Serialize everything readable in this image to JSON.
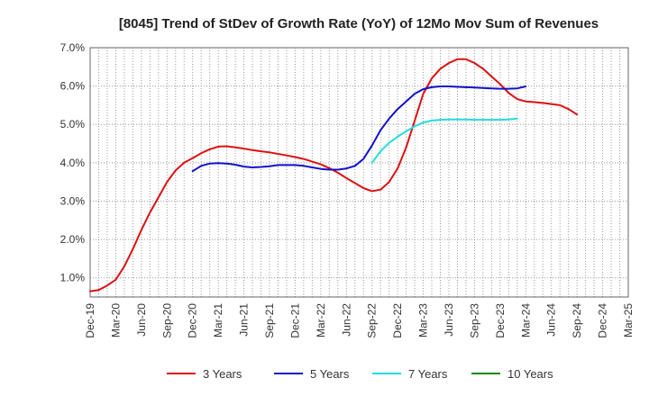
{
  "chart_data": {
    "type": "line",
    "title": "[8045]  Trend of StDev of Growth Rate (YoY) of 12Mo Mov Sum of Revenues",
    "xlabel": "",
    "ylabel": "",
    "ylim": [
      0.5,
      7.0
    ],
    "yticks": [
      1.0,
      2.0,
      3.0,
      4.0,
      5.0,
      6.0,
      7.0
    ],
    "ytick_labels": [
      "1.0%",
      "2.0%",
      "3.0%",
      "4.0%",
      "5.0%",
      "6.0%",
      "7.0%"
    ],
    "xtick_labels": [
      "Dec-19",
      "Mar-20",
      "Jun-20",
      "Sep-20",
      "Dec-20",
      "Mar-21",
      "Jun-21",
      "Sep-21",
      "Dec-21",
      "Mar-22",
      "Jun-22",
      "Sep-22",
      "Dec-22",
      "Mar-23",
      "Jun-23",
      "Sep-23",
      "Dec-23",
      "Mar-24",
      "Jun-24",
      "Sep-24",
      "Dec-24",
      "Mar-25"
    ],
    "x_unit": "months since Dec-19",
    "xlim": [
      0,
      63
    ],
    "grid": true,
    "legend_position": "bottom",
    "series": [
      {
        "name": "3 Years",
        "color": "#dd1111",
        "points": [
          [
            0,
            0.65
          ],
          [
            1,
            0.68
          ],
          [
            2,
            0.8
          ],
          [
            3,
            0.95
          ],
          [
            4,
            1.3
          ],
          [
            5,
            1.75
          ],
          [
            6,
            2.25
          ],
          [
            7,
            2.7
          ],
          [
            8,
            3.1
          ],
          [
            9,
            3.5
          ],
          [
            10,
            3.8
          ],
          [
            11,
            4.0
          ],
          [
            12,
            4.12
          ],
          [
            13,
            4.25
          ],
          [
            14,
            4.35
          ],
          [
            15,
            4.42
          ],
          [
            16,
            4.43
          ],
          [
            17,
            4.4
          ],
          [
            18,
            4.37
          ],
          [
            19,
            4.33
          ],
          [
            20,
            4.3
          ],
          [
            21,
            4.27
          ],
          [
            22,
            4.23
          ],
          [
            23,
            4.19
          ],
          [
            24,
            4.15
          ],
          [
            25,
            4.1
          ],
          [
            26,
            4.03
          ],
          [
            27,
            3.96
          ],
          [
            28,
            3.86
          ],
          [
            29,
            3.74
          ],
          [
            30,
            3.6
          ],
          [
            31,
            3.47
          ],
          [
            32,
            3.34
          ],
          [
            33,
            3.26
          ],
          [
            34,
            3.3
          ],
          [
            35,
            3.5
          ],
          [
            36,
            3.85
          ],
          [
            37,
            4.4
          ],
          [
            38,
            5.1
          ],
          [
            39,
            5.8
          ],
          [
            40,
            6.2
          ],
          [
            41,
            6.45
          ],
          [
            42,
            6.6
          ],
          [
            43,
            6.7
          ],
          [
            44,
            6.7
          ],
          [
            45,
            6.6
          ],
          [
            46,
            6.45
          ],
          [
            47,
            6.25
          ],
          [
            48,
            6.05
          ],
          [
            49,
            5.82
          ],
          [
            50,
            5.66
          ],
          [
            51,
            5.6
          ],
          [
            52,
            5.58
          ],
          [
            53,
            5.56
          ],
          [
            54,
            5.53
          ],
          [
            55,
            5.5
          ],
          [
            56,
            5.4
          ],
          [
            57,
            5.26
          ]
        ]
      },
      {
        "name": "5 Years",
        "color": "#1111cc",
        "points": [
          [
            12,
            3.78
          ],
          [
            13,
            3.92
          ],
          [
            14,
            3.98
          ],
          [
            15,
            3.99
          ],
          [
            16,
            3.98
          ],
          [
            17,
            3.95
          ],
          [
            18,
            3.9
          ],
          [
            19,
            3.88
          ],
          [
            20,
            3.89
          ],
          [
            21,
            3.91
          ],
          [
            22,
            3.94
          ],
          [
            23,
            3.94
          ],
          [
            24,
            3.94
          ],
          [
            25,
            3.92
          ],
          [
            26,
            3.88
          ],
          [
            27,
            3.84
          ],
          [
            28,
            3.82
          ],
          [
            29,
            3.82
          ],
          [
            30,
            3.85
          ],
          [
            31,
            3.92
          ],
          [
            32,
            4.1
          ],
          [
            33,
            4.45
          ],
          [
            34,
            4.85
          ],
          [
            35,
            5.15
          ],
          [
            36,
            5.4
          ],
          [
            37,
            5.6
          ],
          [
            38,
            5.8
          ],
          [
            39,
            5.92
          ],
          [
            40,
            5.97
          ],
          [
            41,
            5.99
          ],
          [
            42,
            5.99
          ],
          [
            43,
            5.98
          ],
          [
            44,
            5.97
          ],
          [
            45,
            5.96
          ],
          [
            46,
            5.95
          ],
          [
            47,
            5.94
          ],
          [
            48,
            5.93
          ],
          [
            49,
            5.93
          ],
          [
            50,
            5.94
          ],
          [
            51,
            5.99
          ]
        ]
      },
      {
        "name": "7 Years",
        "color": "#22dddd",
        "points": [
          [
            33,
            4.0
          ],
          [
            34,
            4.3
          ],
          [
            35,
            4.52
          ],
          [
            36,
            4.68
          ],
          [
            37,
            4.82
          ],
          [
            38,
            4.95
          ],
          [
            39,
            5.05
          ],
          [
            40,
            5.1
          ],
          [
            41,
            5.12
          ],
          [
            42,
            5.13
          ],
          [
            43,
            5.13
          ],
          [
            44,
            5.13
          ],
          [
            45,
            5.12
          ],
          [
            46,
            5.12
          ],
          [
            47,
            5.12
          ],
          [
            48,
            5.12
          ],
          [
            49,
            5.13
          ],
          [
            50,
            5.15
          ]
        ]
      },
      {
        "name": "10 Years",
        "color": "#118811",
        "points": []
      }
    ]
  }
}
